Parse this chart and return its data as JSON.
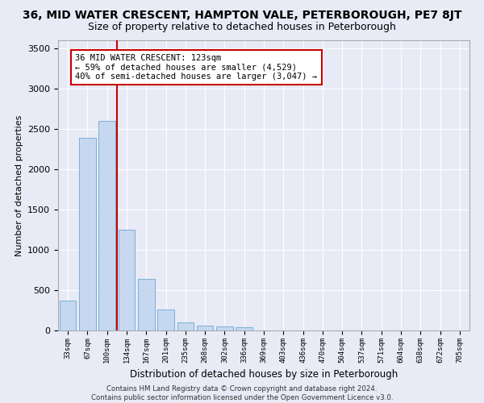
{
  "title": "36, MID WATER CRESCENT, HAMPTON VALE, PETERBOROUGH, PE7 8JT",
  "subtitle": "Size of property relative to detached houses in Peterborough",
  "xlabel": "Distribution of detached houses by size in Peterborough",
  "ylabel": "Number of detached properties",
  "footer_line1": "Contains HM Land Registry data © Crown copyright and database right 2024.",
  "footer_line2": "Contains public sector information licensed under the Open Government Licence v3.0.",
  "categories": [
    "33sqm",
    "67sqm",
    "100sqm",
    "134sqm",
    "167sqm",
    "201sqm",
    "235sqm",
    "268sqm",
    "302sqm",
    "336sqm",
    "369sqm",
    "403sqm",
    "436sqm",
    "470sqm",
    "504sqm",
    "537sqm",
    "571sqm",
    "604sqm",
    "638sqm",
    "672sqm",
    "705sqm"
  ],
  "bar_values": [
    370,
    2390,
    2600,
    1250,
    640,
    260,
    100,
    60,
    55,
    40,
    0,
    0,
    0,
    0,
    0,
    0,
    0,
    0,
    0,
    0,
    0
  ],
  "bar_color": "#c5d8f0",
  "bar_edge_color": "#7bafd4",
  "vline_color": "#cc0000",
  "annotation_text": "36 MID WATER CRESCENT: 123sqm\n← 59% of detached houses are smaller (4,529)\n40% of semi-detached houses are larger (3,047) →",
  "annotation_box_color": "#ffffff",
  "annotation_box_edgecolor": "#cc0000",
  "ylim": [
    0,
    3600
  ],
  "yticks": [
    0,
    500,
    1000,
    1500,
    2000,
    2500,
    3000,
    3500
  ],
  "bg_color": "#e8eaf6",
  "plot_bg_color": "#e8eaf6",
  "grid_color": "#ffffff",
  "title_fontsize": 10,
  "subtitle_fontsize": 9
}
